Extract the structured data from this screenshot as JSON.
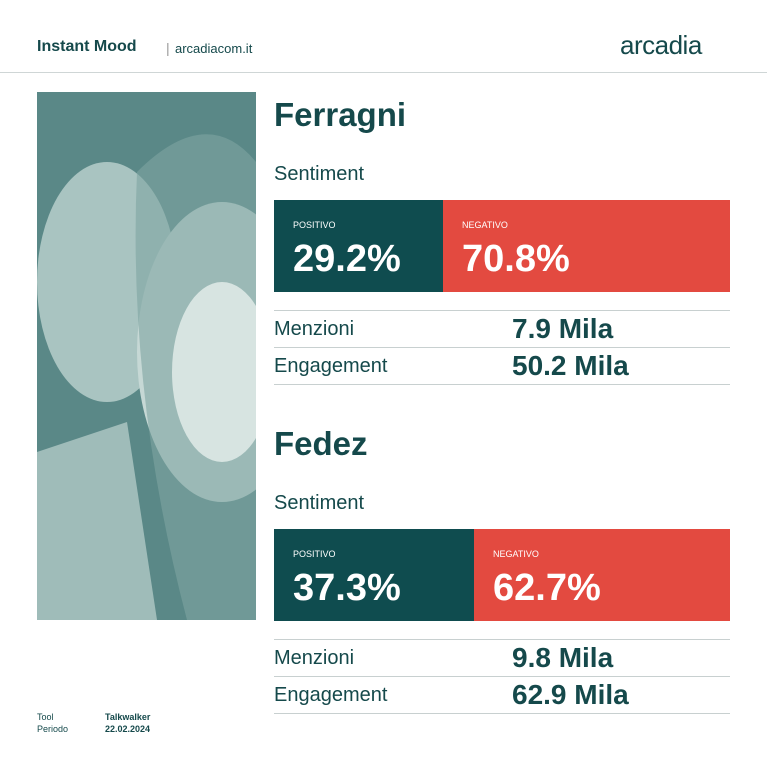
{
  "header": {
    "title": "Instant Mood",
    "site": "arcadiacom.it",
    "logo": "arcadia"
  },
  "sections": [
    {
      "name": "Ferragni",
      "sentiment_label": "Sentiment",
      "positive_label": "POSITIVO",
      "positive": "29.2%",
      "negative_label": "NEGATIVO",
      "negative": "70.8%",
      "rows": [
        {
          "label": "Menzioni",
          "value": "7.9 Mila"
        },
        {
          "label": "Engagement",
          "value": "50.2 Mila"
        }
      ]
    },
    {
      "name": "Fedez",
      "sentiment_label": "Sentiment",
      "positive_label": "POSITIVO",
      "positive": "37.3%",
      "negative_label": "NEGATIVO",
      "negative": "62.7%",
      "rows": [
        {
          "label": "Menzioni",
          "value": "9.8 Mila"
        },
        {
          "label": "Engagement",
          "value": "62.9 Mila"
        }
      ]
    }
  ],
  "footer": {
    "tool_label": "Tool",
    "tool": "Talkwalker",
    "period_label": "Periodo",
    "period": "22.02.2024"
  }
}
